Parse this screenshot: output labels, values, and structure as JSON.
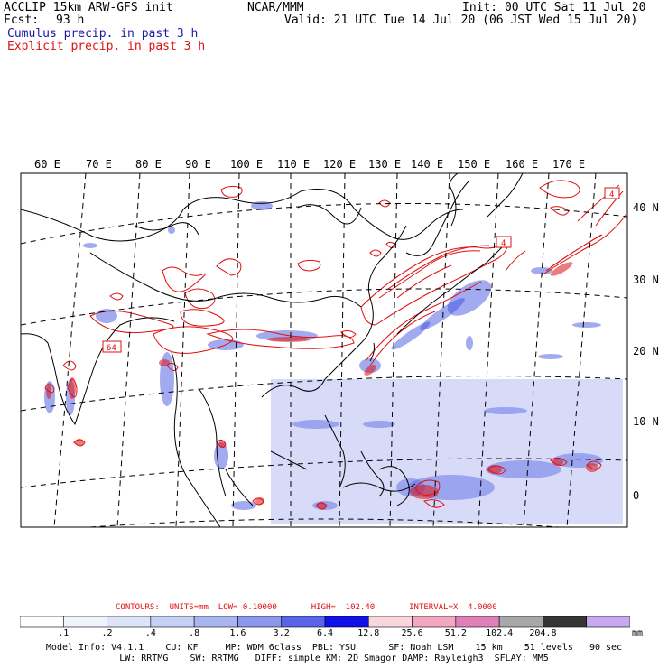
{
  "header": {
    "title_left": "ACCLIP 15km ARW-GFS init",
    "fcst_label": "Fcst:",
    "fcst_value": "93 h",
    "center": "NCAR/MMM",
    "init": "Init: 00 UTC Sat 11 Jul 20",
    "valid": "Valid: 21 UTC Tue 14 Jul 20 (06 JST Wed 15 Jul 20)",
    "cumulus": "Cumulus precip. in past 3 h",
    "explicit": "Explicit precip. in past 3 h"
  },
  "map": {
    "lon_labels": [
      "60 E",
      "70 E",
      "80 E",
      "90 E",
      "100 E",
      "110 E",
      "120 E",
      "130 E",
      "140 E",
      "150 E",
      "160 E",
      "170 E"
    ],
    "lat_labels": [
      "40 N",
      "30 N",
      "20 N",
      "10 N",
      "0"
    ],
    "max_markers": [
      "4",
      "4",
      "64"
    ],
    "colors": {
      "cumulus": "#3344dd",
      "explicit": "#e01010",
      "coast": "#000000",
      "grid": "#000000"
    }
  },
  "contours": "CONTOURS:  UNITS=mm  LOW= 0.10000       HIGH=  102.40       INTERVAL=X  4.0000",
  "colorbar": {
    "unit": "mm",
    "labels": [
      ".1",
      ".2",
      ".4",
      ".8",
      "1.6",
      "3.2",
      "6.4",
      "12.8",
      "25.6",
      "51.2",
      "102.4",
      "204.8"
    ],
    "colors": [
      "#ffffff",
      "#f0f3fc",
      "#dce4f8",
      "#c4d0f4",
      "#a8b6f0",
      "#8c98ec",
      "#5a64e8",
      "#1010e8",
      "#f8d6dc",
      "#f2a8c0",
      "#e080b8",
      "#a8a8a8",
      "#363636",
      "#c8a8f0"
    ]
  },
  "model_info": {
    "line1": "Model Info: V4.1.1    CU: KF     MP: WDM 6class  PBL: YSU      SF: Noah LSM    15 km    51 levels   90 sec",
    "line2": "LW: RRTMG    SW: RRTMG   DIFF: simple KM: 2D Smagor DAMP: Rayleigh3  SFLAY: MM5"
  }
}
